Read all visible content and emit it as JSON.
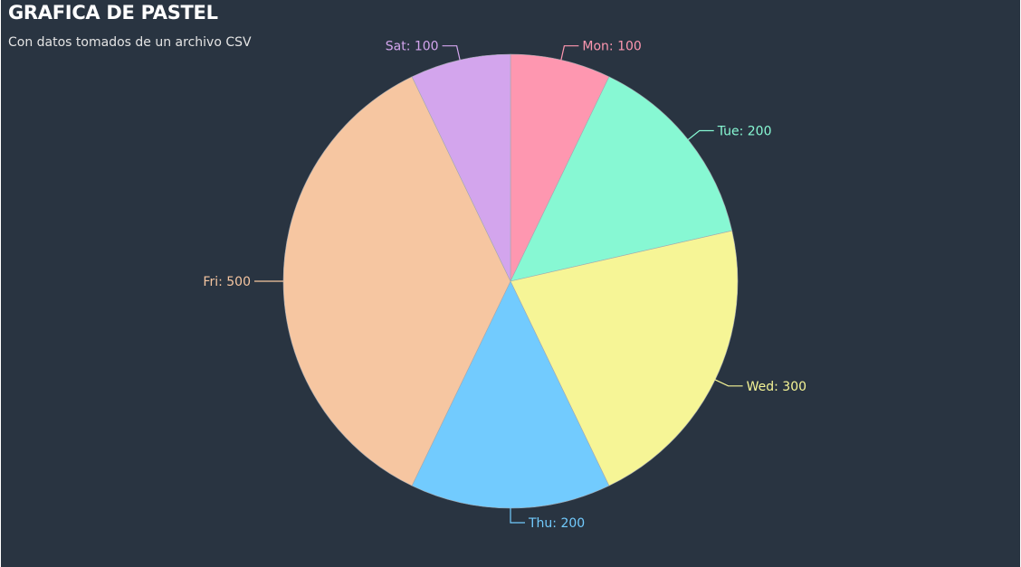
{
  "title": "GRAFICA DE PASTEL",
  "subtitle": "Con datos tomados de un archivo CSV",
  "colors": {
    "background": "#293441",
    "title": "#ffffff",
    "subtitle": "#e4e4e4"
  },
  "chart_data": {
    "type": "pie",
    "categories": [
      "Mon",
      "Tue",
      "Wed",
      "Thu",
      "Fri",
      "Sat"
    ],
    "values": [
      100,
      200,
      300,
      200,
      500,
      100
    ],
    "colors": [
      "#fe97b0",
      "#87f8d3",
      "#f6f596",
      "#72cbfe",
      "#f6c6a1",
      "#d3a5ed"
    ],
    "labels": [
      "Mon: 100",
      "Tue: 200",
      "Wed: 300",
      "Thu: 200",
      "Fri: 500",
      "Sat: 100"
    ],
    "start_angle_deg": 0,
    "direction": "clockwise",
    "legend": "none"
  }
}
